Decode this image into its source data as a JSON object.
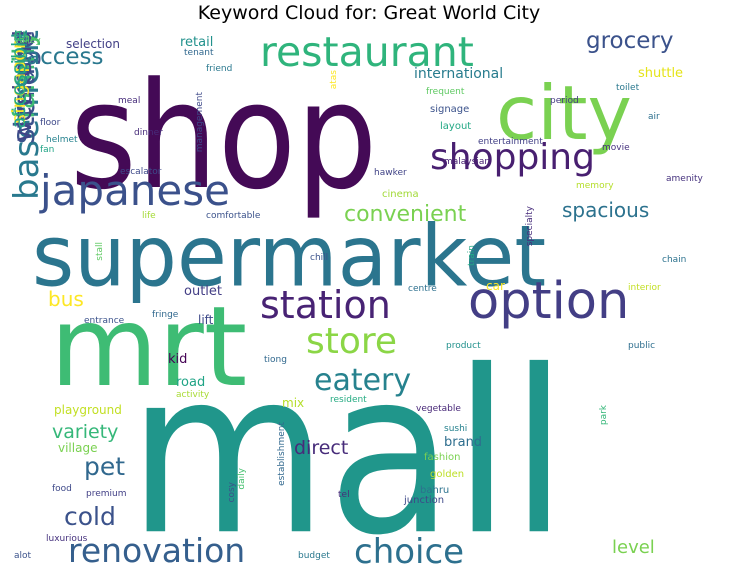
{
  "chart_data": {
    "type": "wordcloud",
    "title": "Keyword Cloud for: Great World City",
    "colormap": "viridis",
    "background": "#ffffff",
    "words": [
      {
        "text": "mall",
        "weight": 100,
        "color": "#20968b",
        "vertical": false
      },
      {
        "text": "shop",
        "weight": 80,
        "color": "#440a56",
        "vertical": false
      },
      {
        "text": "supermarket",
        "weight": 58,
        "color": "#2b758e",
        "vertical": false
      },
      {
        "text": "mrt",
        "weight": 60,
        "color": "#3ebc74",
        "vertical": false
      },
      {
        "text": "city",
        "weight": 50,
        "color": "#7ad151",
        "vertical": false
      },
      {
        "text": "option",
        "weight": 38,
        "color": "#433e85",
        "vertical": false
      },
      {
        "text": "restaurant",
        "weight": 30,
        "color": "#2fb47c",
        "vertical": false
      },
      {
        "text": "japanese",
        "weight": 31,
        "color": "#3b518b",
        "vertical": false
      },
      {
        "text": "station",
        "weight": 28,
        "color": "#482374",
        "vertical": false
      },
      {
        "text": "shopping",
        "weight": 27,
        "color": "#481f70",
        "vertical": false
      },
      {
        "text": "basement",
        "weight": 28,
        "color": "#29798e",
        "vertical": true
      },
      {
        "text": "store",
        "weight": 27,
        "color": "#8bd646",
        "vertical": false
      },
      {
        "text": "storage",
        "weight": 25,
        "color": "#3b528b",
        "vertical": true
      },
      {
        "text": "renovation",
        "weight": 25,
        "color": "#355f8d",
        "vertical": false
      },
      {
        "text": "choice",
        "weight": 26,
        "color": "#2d708e",
        "vertical": false
      },
      {
        "text": "family",
        "weight": 24,
        "color": "#3fbc73",
        "vertical": true
      },
      {
        "text": "eatery",
        "weight": 22,
        "color": "#26828e",
        "vertical": false
      },
      {
        "text": "weekend",
        "weight": 21,
        "color": "#414487",
        "vertical": true
      },
      {
        "text": "grocery",
        "weight": 18,
        "color": "#3b528b",
        "vertical": false
      },
      {
        "text": "court",
        "weight": 18,
        "color": "#21918c",
        "vertical": true
      },
      {
        "text": "access",
        "weight": 18,
        "color": "#2a788e",
        "vertical": false
      },
      {
        "text": "cold",
        "weight": 19,
        "color": "#3b528b",
        "vertical": false
      },
      {
        "text": "pet",
        "weight": 19,
        "color": "#31688e",
        "vertical": false
      },
      {
        "text": "singapore",
        "weight": 16,
        "color": "#fde725",
        "vertical": true
      },
      {
        "text": "accessible",
        "weight": 16,
        "color": "#22a785",
        "vertical": true
      },
      {
        "text": "convenient",
        "weight": 16,
        "color": "#7ad151",
        "vertical": false
      },
      {
        "text": "spacious",
        "weight": 15,
        "color": "#2c728e",
        "vertical": false
      },
      {
        "text": "bus",
        "weight": 15,
        "color": "#fde725",
        "vertical": false
      },
      {
        "text": "variety",
        "weight": 14,
        "color": "#35b779",
        "vertical": false
      },
      {
        "text": "direct",
        "weight": 14,
        "color": "#472c7a",
        "vertical": false
      },
      {
        "text": "level",
        "weight": 13,
        "color": "#7ad151",
        "vertical": false
      },
      {
        "text": "international",
        "weight": 11,
        "color": "#287c8e",
        "vertical": false
      },
      {
        "text": "retail",
        "weight": 10,
        "color": "#21918c",
        "vertical": false
      },
      {
        "text": "shuttle",
        "weight": 10,
        "color": "#e5e419",
        "vertical": false
      },
      {
        "text": "outlet",
        "weight": 10,
        "color": "#433e85",
        "vertical": false
      },
      {
        "text": "road",
        "weight": 10,
        "color": "#20a486",
        "vertical": false
      },
      {
        "text": "kid",
        "weight": 10,
        "color": "#440154",
        "vertical": false
      },
      {
        "text": "brand",
        "weight": 10,
        "color": "#2e6e8e",
        "vertical": false
      },
      {
        "text": "car",
        "weight": 9,
        "color": "#fde725",
        "vertical": false
      },
      {
        "text": "mix",
        "weight": 9,
        "color": "#b5de2b",
        "vertical": false
      },
      {
        "text": "selection",
        "weight": 9,
        "color": "#424086",
        "vertical": false
      },
      {
        "text": "playground",
        "weight": 9,
        "color": "#c2df23",
        "vertical": false
      },
      {
        "text": "village",
        "weight": 9,
        "color": "#7ad151",
        "vertical": false
      },
      {
        "text": "lift",
        "weight": 9,
        "color": "#3e4989",
        "vertical": false
      },
      {
        "text": "cinema",
        "weight": 8,
        "color": "#a2da37",
        "vertical": false
      },
      {
        "text": "signage",
        "weight": 8,
        "color": "#3b528b",
        "vertical": false
      },
      {
        "text": "layout",
        "weight": 8,
        "color": "#22a884",
        "vertical": false
      },
      {
        "text": "fashion",
        "weight": 8,
        "color": "#7ad151",
        "vertical": false
      },
      {
        "text": "golden",
        "weight": 8,
        "color": "#bddf26",
        "vertical": false
      },
      {
        "text": "bahru",
        "weight": 8,
        "color": "#2c728e",
        "vertical": false
      },
      {
        "text": "junction",
        "weight": 8,
        "color": "#3e4989",
        "vertical": false
      },
      {
        "text": "malaysian",
        "weight": 7,
        "color": "#482173",
        "vertical": false
      },
      {
        "text": "hawker",
        "weight": 7,
        "color": "#414487",
        "vertical": false
      },
      {
        "text": "movie",
        "weight": 7,
        "color": "#46327e",
        "vertical": false
      },
      {
        "text": "tenant",
        "weight": 7,
        "color": "#31688e",
        "vertical": false
      },
      {
        "text": "toilet",
        "weight": 7,
        "color": "#2a788e",
        "vertical": false
      },
      {
        "text": "frequent",
        "weight": 7,
        "color": "#5ec962",
        "vertical": false
      },
      {
        "text": "air",
        "weight": 7,
        "color": "#2d708e",
        "vertical": false
      },
      {
        "text": "period",
        "weight": 7,
        "color": "#443a83",
        "vertical": false
      },
      {
        "text": "entertainment",
        "weight": 7,
        "color": "#424086",
        "vertical": false
      },
      {
        "text": "amenity",
        "weight": 6,
        "color": "#46327e",
        "vertical": false
      },
      {
        "text": "floor",
        "weight": 7,
        "color": "#3e4989",
        "vertical": false
      },
      {
        "text": "helmet",
        "weight": 6,
        "color": "#26828e",
        "vertical": false
      },
      {
        "text": "fan",
        "weight": 6,
        "color": "#20a486",
        "vertical": false
      },
      {
        "text": "valley",
        "weight": 6,
        "color": "#5ec962",
        "vertical": false
      },
      {
        "text": "friend",
        "weight": 6,
        "color": "#2a788e",
        "vertical": false
      },
      {
        "text": "meal",
        "weight": 6,
        "color": "#472d7b",
        "vertical": false
      },
      {
        "text": "dinner",
        "weight": 6,
        "color": "#472c7a",
        "vertical": false
      },
      {
        "text": "escalator",
        "weight": 6,
        "color": "#3e4989",
        "vertical": false
      },
      {
        "text": "comfortable",
        "weight": 6,
        "color": "#3b528b",
        "vertical": false
      },
      {
        "text": "life",
        "weight": 6,
        "color": "#a5db36",
        "vertical": false
      },
      {
        "text": "chill",
        "weight": 6,
        "color": "#3b528b",
        "vertical": false
      },
      {
        "text": "chain",
        "weight": 6,
        "color": "#2c728e",
        "vertical": false
      },
      {
        "text": "interior",
        "weight": 6,
        "color": "#c2df23",
        "vertical": false
      },
      {
        "text": "centre",
        "weight": 6,
        "color": "#2d708e",
        "vertical": false
      },
      {
        "text": "fringe",
        "weight": 6,
        "color": "#31688e",
        "vertical": false
      },
      {
        "text": "entrance",
        "weight": 6,
        "color": "#3b528b",
        "vertical": false
      },
      {
        "text": "product",
        "weight": 6,
        "color": "#21918c",
        "vertical": false
      },
      {
        "text": "public",
        "weight": 6,
        "color": "#2e6e8e",
        "vertical": false
      },
      {
        "text": "tiong",
        "weight": 6,
        "color": "#31688e",
        "vertical": false
      },
      {
        "text": "resident",
        "weight": 6,
        "color": "#25ab82",
        "vertical": false
      },
      {
        "text": "activity",
        "weight": 6,
        "color": "#a8db34",
        "vertical": false
      },
      {
        "text": "vegetable",
        "weight": 6,
        "color": "#482878",
        "vertical": false
      },
      {
        "text": "sushi",
        "weight": 6,
        "color": "#26828e",
        "vertical": false
      },
      {
        "text": "food",
        "weight": 6,
        "color": "#3e4989",
        "vertical": false
      },
      {
        "text": "premium",
        "weight": 6,
        "color": "#424086",
        "vertical": false
      },
      {
        "text": "tel",
        "weight": 6,
        "color": "#472d7b",
        "vertical": false
      },
      {
        "text": "luxurious",
        "weight": 6,
        "color": "#46327e",
        "vertical": false
      },
      {
        "text": "alot",
        "weight": 6,
        "color": "#3b528b",
        "vertical": false
      },
      {
        "text": "budget",
        "weight": 6,
        "color": "#2a788e",
        "vertical": false
      },
      {
        "text": "memory",
        "weight": 5,
        "color": "#b5de2b",
        "vertical": false
      },
      {
        "text": "park",
        "weight": 6,
        "color": "#35b779",
        "vertical": true
      },
      {
        "text": "specialty",
        "weight": 6,
        "color": "#472d7b",
        "vertical": true
      },
      {
        "text": "train",
        "weight": 6,
        "color": "#22a884",
        "vertical": true
      },
      {
        "text": "management",
        "weight": 6,
        "color": "#3e4989",
        "vertical": true
      },
      {
        "text": "establishment",
        "weight": 6,
        "color": "#31688e",
        "vertical": true
      },
      {
        "text": "daily",
        "weight": 6,
        "color": "#46c06f",
        "vertical": true
      },
      {
        "text": "cosy",
        "weight": 6,
        "color": "#3b528b",
        "vertical": true
      },
      {
        "text": "stall",
        "weight": 6,
        "color": "#5ec962",
        "vertical": true
      },
      {
        "text": "atas",
        "weight": 5,
        "color": "#fde725",
        "vertical": true
      }
    ]
  }
}
